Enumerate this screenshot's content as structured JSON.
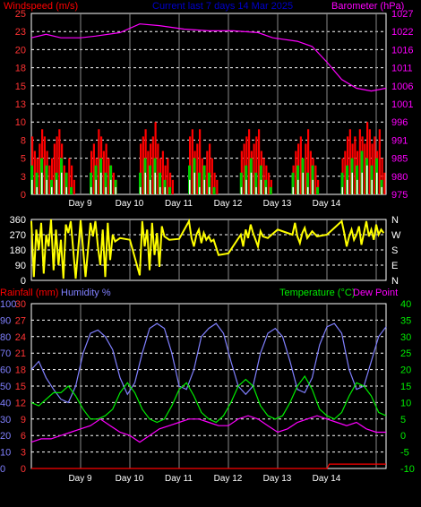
{
  "header": {
    "left": "Windspeed (m/s)",
    "center": "Current last 7 days 14 Mar 2025",
    "right": "Barometer (hPa)"
  },
  "days": [
    "Day 9",
    "Day 10",
    "Day 11",
    "Day 12",
    "Day 13",
    "Day 14"
  ],
  "colors": {
    "pressure": "#ff00ff",
    "gust": "#ff0000",
    "avgwind": "#00cc00",
    "wind": "#ffffff",
    "direction": "#ffff00",
    "humidity": "#8080ff",
    "temperature": "#00ee00",
    "dewpoint": "#ff00ff",
    "rainfall": "#ff0000",
    "grid": "#ffffff",
    "daylines": "#888888"
  },
  "chart_data": [
    {
      "type": "line",
      "title": "Windspeed (m/s) / Barometer (hPa)",
      "left_axis": {
        "label": "Windspeed (m/s)",
        "ticks": [
          "25",
          "23",
          "20",
          "18",
          "15",
          "13",
          "10",
          "8",
          "5",
          "3",
          "0"
        ],
        "range": [
          0,
          25
        ]
      },
      "right_axis": {
        "label": "Barometer (hPa)",
        "ticks": [
          "1027",
          "1022",
          "1016",
          "1011",
          "1006",
          "1001",
          "996",
          "991",
          "985",
          "980",
          "975"
        ],
        "range": [
          975,
          1027
        ]
      },
      "x_labels": [
        "Day 9",
        "Day 10",
        "Day 11",
        "Day 12",
        "Day 13",
        "Day 14"
      ],
      "series": [
        {
          "name": "Barometer",
          "x": [
            0,
            0.3,
            0.6,
            1.0,
            1.3,
            1.8,
            2.2,
            2.6,
            3.1,
            3.6,
            4.1,
            4.6,
            4.9,
            5.4,
            5.7,
            6.0,
            6.3,
            6.6,
            6.9,
            7.2
          ],
          "y": [
            1020,
            1021,
            1020,
            1020,
            1020.5,
            1021.5,
            1024,
            1023.5,
            1022.5,
            1022,
            1022,
            1021.5,
            1020,
            1019,
            1017.5,
            1013,
            1008,
            1005.5,
            1004.7,
            1005.5
          ]
        },
        {
          "name": "Gust",
          "x": [
            0.0,
            0.05,
            0.1,
            0.15,
            0.2,
            0.25,
            0.3,
            0.35,
            0.4,
            0.45,
            0.5,
            0.55,
            0.6,
            0.65,
            0.7,
            0.75,
            0.8,
            0.85,
            1.2,
            1.25,
            1.3,
            1.35,
            1.4,
            1.45,
            1.5,
            1.55,
            1.6,
            1.65,
            1.7,
            2.2,
            2.25,
            2.3,
            2.35,
            2.4,
            2.45,
            2.5,
            2.55,
            2.6,
            2.65,
            2.7,
            2.75,
            2.8,
            2.85,
            3.2,
            3.25,
            3.3,
            3.35,
            3.4,
            3.45,
            3.5,
            3.55,
            3.6,
            3.65,
            3.7,
            3.75,
            4.25,
            4.3,
            4.35,
            4.4,
            4.45,
            4.5,
            4.55,
            4.6,
            4.65,
            4.7,
            4.75,
            4.8,
            4.85,
            5.3,
            5.35,
            5.4,
            5.45,
            5.5,
            5.55,
            5.6,
            5.65,
            5.7,
            5.75,
            5.8,
            6.3,
            6.35,
            6.4,
            6.45,
            6.5,
            6.55,
            6.6,
            6.65,
            6.7,
            6.75,
            6.8,
            6.85,
            6.9,
            6.95,
            7.0,
            7.05,
            7.1,
            7.15
          ],
          "y": [
            8,
            6,
            5,
            7,
            9,
            8,
            6,
            4,
            5,
            7,
            8,
            9,
            7,
            4,
            3,
            5,
            4,
            2,
            6,
            7,
            5,
            9,
            8,
            6,
            7,
            5,
            4,
            3,
            2,
            7,
            8,
            9,
            6,
            7,
            8,
            10,
            7,
            5,
            6,
            4,
            5,
            3,
            2,
            8,
            9,
            6,
            7,
            9,
            5,
            4,
            6,
            7,
            5,
            3,
            2,
            6,
            7,
            8,
            9,
            6,
            7,
            8,
            9,
            6,
            5,
            4,
            3,
            2,
            4,
            6,
            7,
            8,
            5,
            7,
            9,
            6,
            5,
            4,
            2,
            5,
            6,
            8,
            9,
            7,
            8,
            6,
            9,
            8,
            7,
            10,
            9,
            7,
            8,
            6,
            9,
            5,
            3
          ]
        },
        {
          "name": "Average wind",
          "x": [
            0.0,
            0.1,
            0.2,
            0.3,
            0.4,
            0.5,
            0.6,
            0.7,
            0.8,
            1.2,
            1.3,
            1.4,
            1.5,
            1.6,
            1.7,
            2.2,
            2.3,
            2.4,
            2.5,
            2.6,
            2.7,
            2.8,
            3.2,
            3.3,
            3.4,
            3.5,
            3.6,
            3.7,
            4.25,
            4.35,
            4.45,
            4.55,
            4.65,
            4.75,
            4.85,
            5.3,
            5.4,
            5.5,
            5.6,
            5.7,
            5.8,
            6.3,
            6.4,
            6.5,
            6.6,
            6.7,
            6.8,
            6.9,
            7.0,
            7.1
          ],
          "y": [
            4,
            3,
            5,
            4,
            2,
            3,
            5,
            3,
            1,
            3,
            4,
            5,
            3,
            4,
            2,
            3,
            5,
            4,
            5,
            3,
            2,
            1,
            4,
            5,
            3,
            4,
            3,
            1,
            3,
            4,
            5,
            3,
            4,
            2,
            1,
            3,
            4,
            5,
            3,
            4,
            1,
            3,
            4,
            5,
            4,
            6,
            5,
            4,
            5,
            2
          ]
        },
        {
          "name": "Wind",
          "x": [
            0.0,
            0.1,
            0.2,
            0.3,
            0.4,
            0.5,
            0.6,
            0.7,
            0.8,
            1.2,
            1.3,
            1.4,
            1.5,
            1.6,
            1.7,
            2.2,
            2.3,
            2.4,
            2.5,
            2.6,
            2.7,
            2.8,
            3.2,
            3.3,
            3.4,
            3.5,
            3.6,
            3.7,
            4.25,
            4.35,
            4.45,
            4.55,
            4.65,
            4.75,
            4.85,
            5.3,
            5.4,
            5.5,
            5.6,
            5.7,
            5.8,
            6.3,
            6.4,
            6.5,
            6.6,
            6.7,
            6.8,
            6.9,
            7.0,
            7.1
          ],
          "y": [
            2,
            1,
            3,
            2,
            1,
            2,
            3,
            1,
            0,
            1,
            2,
            3,
            1,
            2,
            1,
            1,
            3,
            2,
            3,
            1,
            1,
            0,
            2,
            3,
            1,
            2,
            1,
            0,
            1,
            2,
            3,
            1,
            2,
            1,
            0,
            1,
            2,
            3,
            1,
            2,
            0,
            1,
            2,
            3,
            2,
            3,
            4,
            2,
            3,
            1
          ]
        }
      ]
    },
    {
      "type": "line",
      "title": "Wind direction",
      "left_axis": {
        "ticks": [
          "360",
          "270",
          "180",
          "90",
          "0"
        ],
        "range": [
          0,
          360
        ]
      },
      "right_axis": {
        "ticks": [
          "N",
          "W",
          "S",
          "E",
          "N"
        ]
      },
      "x_labels": [
        "Day 9",
        "Day 10",
        "Day 11",
        "Day 12",
        "Day 13",
        "Day 14"
      ],
      "series": [
        {
          "name": "Direction",
          "x": [
            0.0,
            0.05,
            0.1,
            0.15,
            0.2,
            0.25,
            0.3,
            0.35,
            0.4,
            0.45,
            0.5,
            0.55,
            0.6,
            0.65,
            0.7,
            0.75,
            0.8,
            0.9,
            1.0,
            1.1,
            1.2,
            1.25,
            1.3,
            1.35,
            1.4,
            1.45,
            1.5,
            1.55,
            1.6,
            1.65,
            1.7,
            1.8,
            2.0,
            2.2,
            2.25,
            2.3,
            2.35,
            2.4,
            2.45,
            2.5,
            2.55,
            2.6,
            2.65,
            2.7,
            2.8,
            3.0,
            3.2,
            3.25,
            3.3,
            3.35,
            3.4,
            3.45,
            3.5,
            3.55,
            3.6,
            3.65,
            3.7,
            3.8,
            4.0,
            4.25,
            4.3,
            4.35,
            4.4,
            4.45,
            4.5,
            4.55,
            4.6,
            4.65,
            4.7,
            4.8,
            5.0,
            5.3,
            5.35,
            5.4,
            5.45,
            5.5,
            5.55,
            5.6,
            5.65,
            5.7,
            5.8,
            6.0,
            6.3,
            6.35,
            6.4,
            6.45,
            6.5,
            6.55,
            6.6,
            6.65,
            6.7,
            6.75,
            6.8,
            6.85,
            6.9,
            6.95,
            7.0,
            7.05,
            7.1,
            7.15
          ],
          "y": [
            350,
            20,
            300,
            180,
            340,
            40,
            270,
            200,
            360,
            60,
            300,
            90,
            240,
            10,
            330,
            280,
            350,
            10,
            355,
            20,
            340,
            260,
            350,
            200,
            90,
            300,
            20,
            340,
            120,
            270,
            230,
            250,
            240,
            30,
            350,
            200,
            300,
            60,
            340,
            150,
            280,
            80,
            320,
            260,
            240,
            245,
            350,
            250,
            200,
            270,
            300,
            220,
            280,
            240,
            260,
            230,
            240,
            150,
            160,
            270,
            200,
            300,
            250,
            330,
            280,
            240,
            200,
            290,
            260,
            250,
            300,
            270,
            340,
            260,
            220,
            280,
            310,
            250,
            270,
            290,
            260,
            270,
            350,
            280,
            200,
            260,
            300,
            240,
            270,
            320,
            210,
            280,
            350,
            260,
            300,
            240,
            330,
            270,
            300,
            280
          ]
        }
      ]
    },
    {
      "type": "line",
      "title": "Rainfall (mm) / Humidity % / Temperature (°C) / Dew Point",
      "axis_rain": {
        "label": "Rainfall (mm)",
        "ticks": [
          "30",
          "27",
          "24",
          "21",
          "18",
          "15",
          "12",
          "9",
          "6",
          "3",
          "0"
        ]
      },
      "axis_humidity": {
        "label": "Humidity %",
        "ticks": [
          "100",
          "90",
          "80",
          "70",
          "60",
          "50",
          "40",
          "30",
          "20",
          "10",
          "0"
        ],
        "range": [
          0,
          100
        ]
      },
      "axis_temperature": {
        "label": "Temperature (°C)",
        "ticks": [
          "40",
          "35",
          "30",
          "25",
          "20",
          "15",
          "10",
          "5",
          "0",
          "-5",
          "-10"
        ],
        "range": [
          -10,
          40
        ]
      },
      "dewpoint_label": "Dew Point",
      "x_labels": [
        "Day 9",
        "Day 10",
        "Day 11",
        "Day 12",
        "Day 13",
        "Day 14"
      ],
      "series": [
        {
          "name": "Humidity",
          "x": [
            0.0,
            0.15,
            0.3,
            0.45,
            0.6,
            0.75,
            0.9,
            1.05,
            1.2,
            1.35,
            1.5,
            1.65,
            1.8,
            1.95,
            2.1,
            2.25,
            2.4,
            2.55,
            2.7,
            2.85,
            3.0,
            3.15,
            3.3,
            3.45,
            3.6,
            3.75,
            3.9,
            4.05,
            4.2,
            4.35,
            4.5,
            4.65,
            4.8,
            4.95,
            5.1,
            5.25,
            5.4,
            5.55,
            5.7,
            5.85,
            6.0,
            6.15,
            6.3,
            6.45,
            6.6,
            6.75,
            6.9,
            7.05,
            7.2
          ],
          "y": [
            60,
            65,
            55,
            48,
            42,
            40,
            50,
            70,
            82,
            84,
            80,
            72,
            55,
            45,
            52,
            70,
            85,
            88,
            85,
            70,
            50,
            48,
            60,
            80,
            85,
            88,
            82,
            65,
            50,
            45,
            50,
            70,
            82,
            85,
            80,
            65,
            48,
            46,
            55,
            75,
            86,
            88,
            82,
            60,
            48,
            50,
            65,
            80,
            86
          ]
        },
        {
          "name": "Temperature",
          "x": [
            0.0,
            0.15,
            0.3,
            0.45,
            0.6,
            0.75,
            0.9,
            1.05,
            1.2,
            1.35,
            1.5,
            1.65,
            1.8,
            1.95,
            2.1,
            2.25,
            2.4,
            2.55,
            2.7,
            2.85,
            3.0,
            3.15,
            3.3,
            3.45,
            3.6,
            3.75,
            3.9,
            4.05,
            4.2,
            4.35,
            4.5,
            4.65,
            4.8,
            4.95,
            5.1,
            5.25,
            5.4,
            5.55,
            5.7,
            5.85,
            6.0,
            6.15,
            6.3,
            6.45,
            6.6,
            6.75,
            6.9,
            7.05,
            7.2
          ],
          "y": [
            10,
            9,
            11,
            13,
            13,
            15,
            12,
            8,
            5,
            5,
            6,
            8,
            13,
            16,
            13,
            8,
            5,
            4,
            5,
            9,
            14,
            16,
            12,
            7,
            5,
            4,
            6,
            10,
            15,
            17,
            15,
            9,
            6,
            5,
            6,
            10,
            15,
            18,
            14,
            8,
            6,
            5,
            7,
            12,
            16,
            15,
            12,
            7,
            6
          ]
        },
        {
          "name": "Dew point",
          "x": [
            0.0,
            0.2,
            0.4,
            0.6,
            0.8,
            1.0,
            1.2,
            1.4,
            1.6,
            1.8,
            2.0,
            2.2,
            2.4,
            2.6,
            2.8,
            3.0,
            3.2,
            3.4,
            3.6,
            3.8,
            4.0,
            4.2,
            4.4,
            4.6,
            4.8,
            5.0,
            5.2,
            5.4,
            5.6,
            5.8,
            6.0,
            6.2,
            6.4,
            6.6,
            6.8,
            7.0,
            7.2
          ],
          "y": [
            -2,
            -1,
            -1,
            0,
            1,
            2,
            3,
            5,
            3,
            1,
            0,
            -2,
            0,
            2,
            3,
            4,
            5,
            5,
            4,
            3,
            3,
            5,
            6,
            5,
            3,
            1,
            2,
            4,
            5,
            6,
            5,
            4,
            3,
            4,
            2,
            1,
            1
          ]
        },
        {
          "name": "Rainfall",
          "x": [
            0,
            6.0,
            6.05,
            6.1,
            6.2,
            7.2
          ],
          "y": [
            0,
            0,
            0.8,
            0.8,
            0.8,
            0.8
          ]
        }
      ]
    }
  ]
}
